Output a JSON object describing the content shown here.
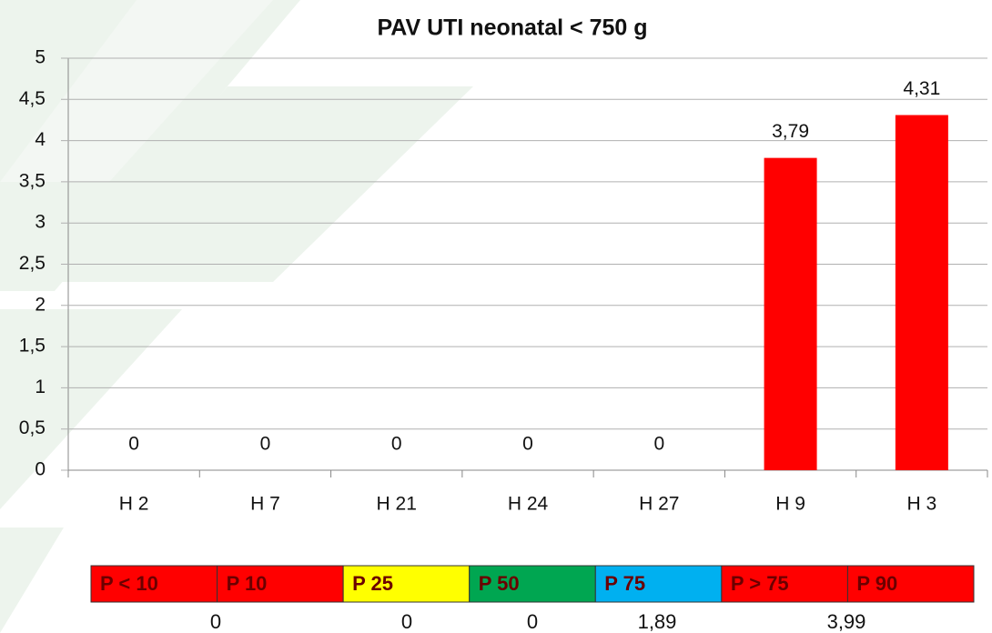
{
  "chart_data": {
    "type": "bar",
    "title": "PAV UTI neonatal < 750 g",
    "categories": [
      "H 2",
      "H 7",
      "H 21",
      "H 24",
      "H 27",
      "H 9",
      "H 3"
    ],
    "values": [
      0,
      0,
      0,
      0,
      0,
      3.79,
      4.31
    ],
    "value_labels": [
      "0",
      "0",
      "0",
      "0",
      "0",
      "3,79",
      "4,31"
    ],
    "color": "#ff0000",
    "ylim": [
      0,
      5
    ],
    "yticks": [
      0,
      {
        "value": 0.5,
        "label": "0,5"
      },
      1,
      {
        "value": 1.5,
        "label": "1,5"
      },
      2,
      {
        "value": 2.5,
        "label": "2,5"
      },
      3,
      {
        "value": 3.5,
        "label": "3,5"
      },
      4,
      {
        "value": 4.5,
        "label": "4,5"
      },
      5
    ],
    "grid": true
  },
  "percentile_bar": {
    "labels": [
      "P < 10",
      "P 10",
      "P 25",
      "P 50",
      "P 75",
      "P > 75",
      "P 90"
    ],
    "colors": [
      "#ff0000",
      "#ff0000",
      "#ffff00",
      "#00a651",
      "#00b0f0",
      "#ff0000",
      "#ff0000"
    ],
    "values": [
      0,
      0,
      0,
      {
        "value": 1.89,
        "label": "1,89"
      },
      {
        "value": 3.99,
        "label": "3,99"
      }
    ]
  }
}
